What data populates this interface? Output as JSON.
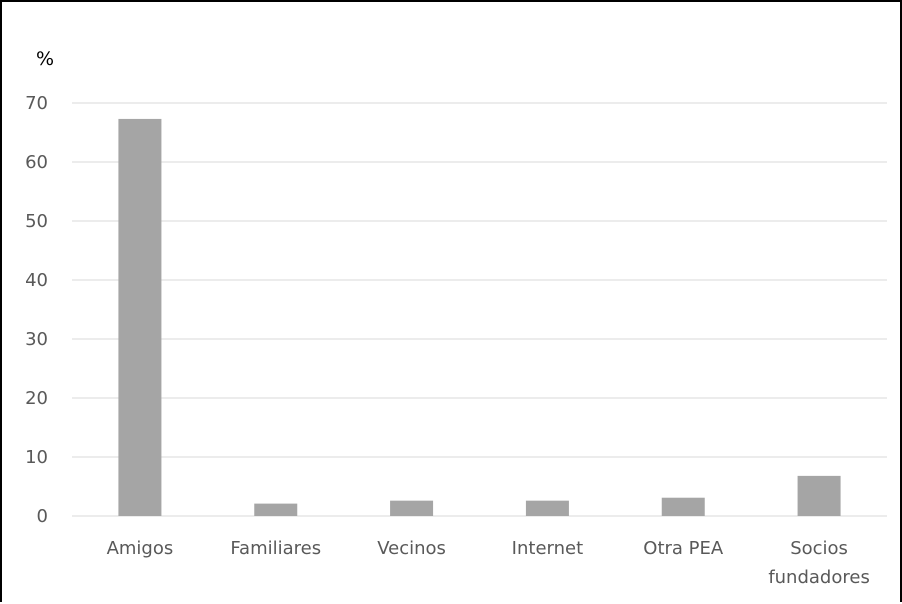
{
  "chart_data": {
    "type": "bar",
    "ylabel": "%",
    "categories": [
      "Amigos",
      "Familiares",
      "Vecinos",
      "Internet",
      "Otra PEA",
      [
        "Socios",
        "fundadores"
      ]
    ],
    "values": [
      67.3,
      2.1,
      2.6,
      2.6,
      3.1,
      6.8
    ],
    "ylim": [
      0,
      70
    ],
    "yticks": [
      0,
      10,
      20,
      30,
      40,
      50,
      60,
      70
    ],
    "grid": true,
    "legend": "none",
    "bar_color": "#a5a5a5",
    "grid_color": "#d9d9d9"
  }
}
